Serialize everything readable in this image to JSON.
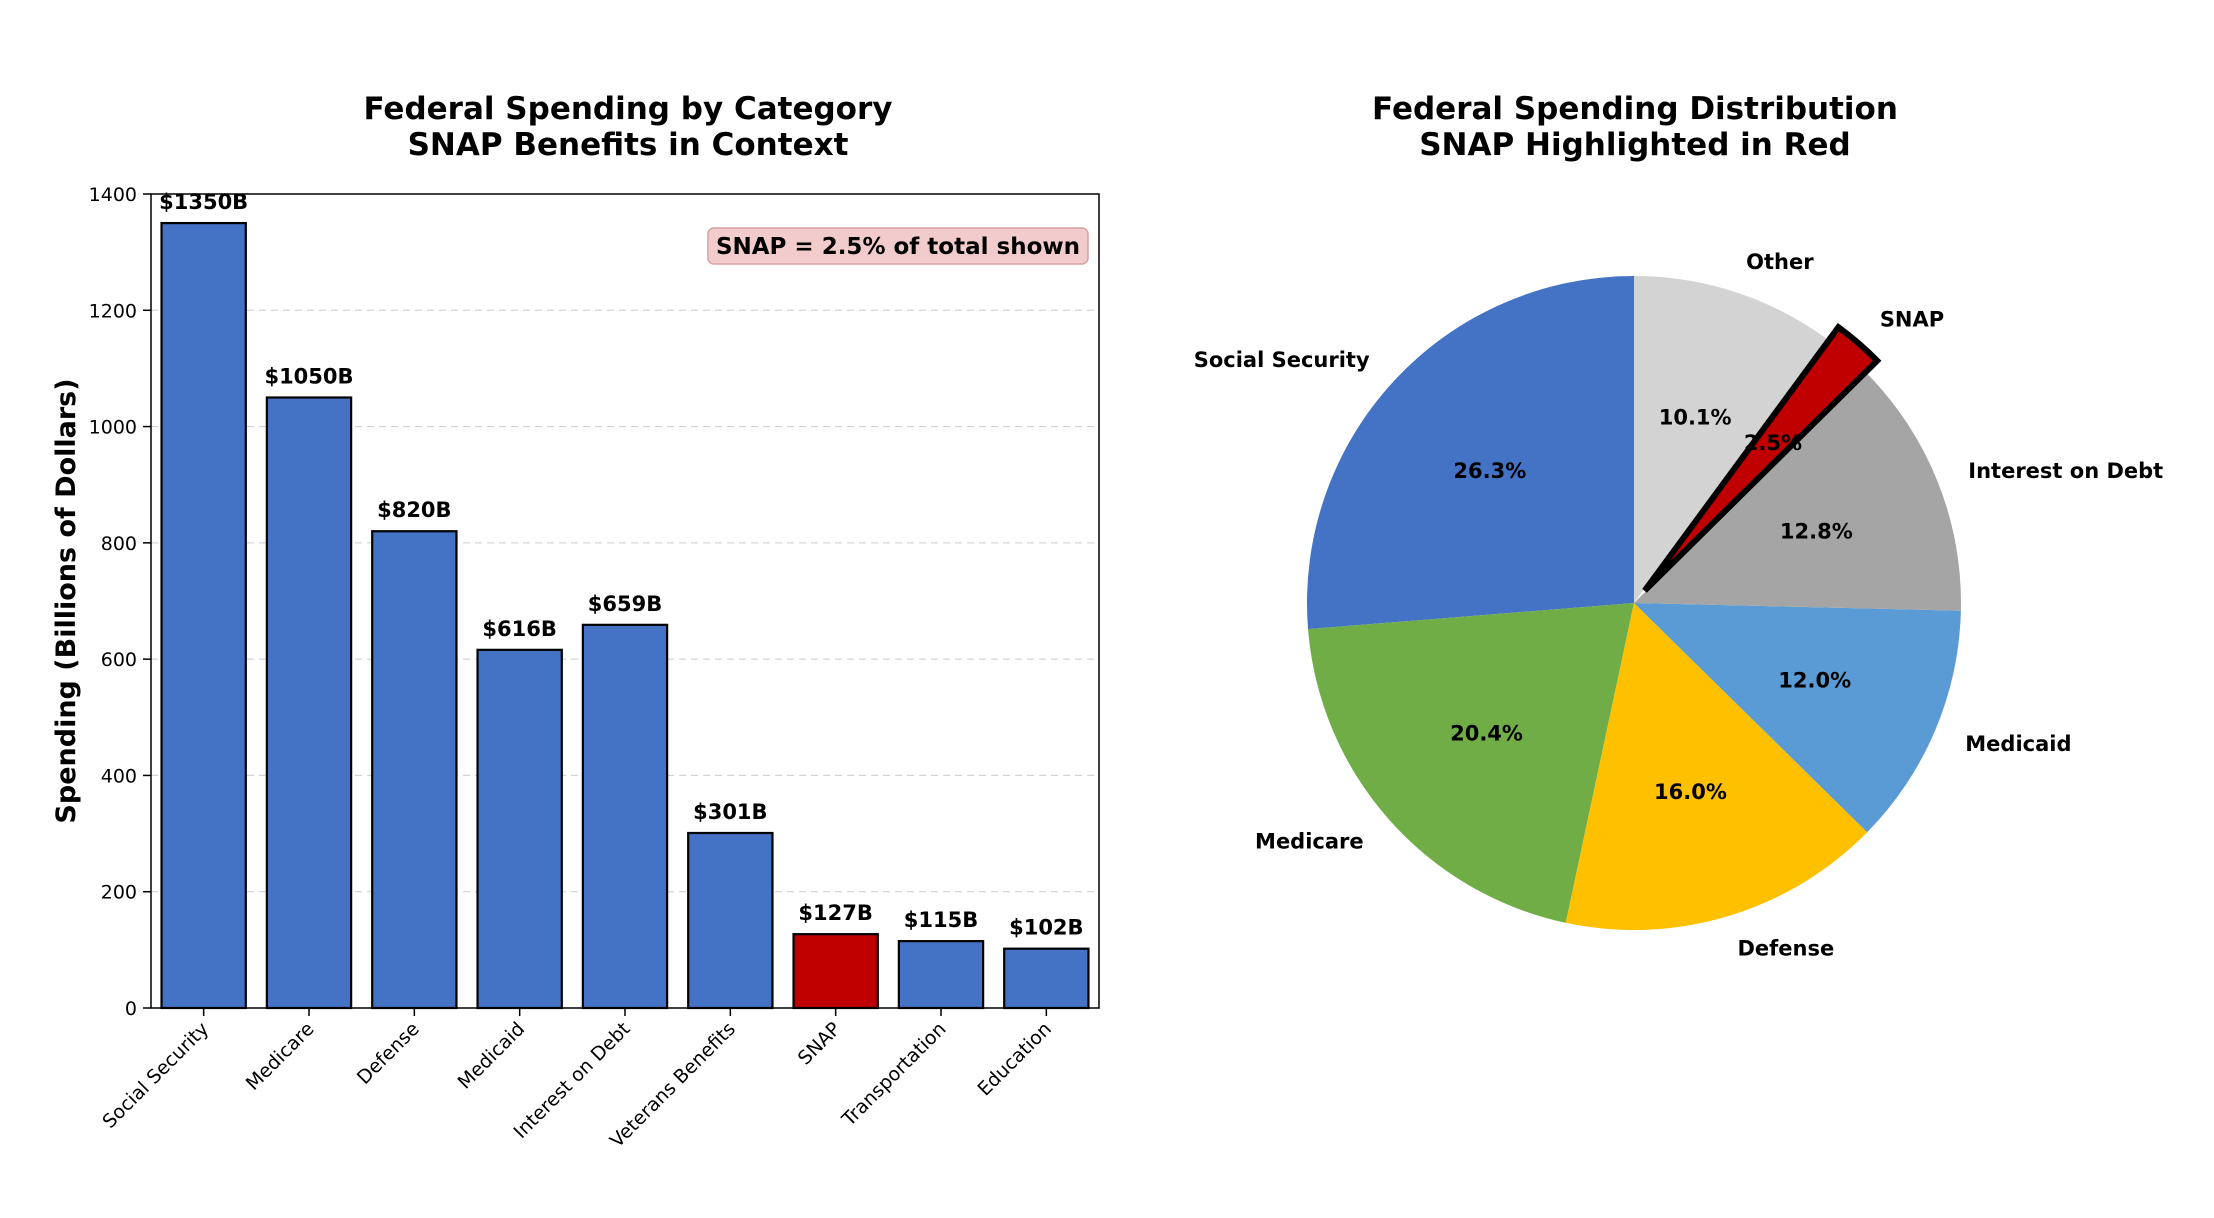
{
  "chart_data": [
    {
      "type": "bar",
      "title_line1": "Federal Spending by Category",
      "title_line2": "SNAP Benefits in Context",
      "ylabel": "Spending (Billions of Dollars)",
      "categories": [
        "Social Security",
        "Medicare",
        "Defense",
        "Medicaid",
        "Interest on Debt",
        "Veterans Benefits",
        "SNAP",
        "Transportation",
        "Education"
      ],
      "values": [
        1350,
        1050,
        820,
        616,
        659,
        301,
        127,
        115,
        102
      ],
      "value_labels": [
        "$1350B",
        "$1050B",
        "$820B",
        "$616B",
        "$659B",
        "$301B",
        "$127B",
        "$115B",
        "$102B"
      ],
      "highlight": "SNAP",
      "colors": {
        "default": "#4472c4",
        "highlight": "#c00000"
      },
      "ylim": [
        0,
        1400
      ],
      "yticks": [
        0,
        200,
        400,
        600,
        800,
        1000,
        1200,
        1400
      ],
      "grid": "y dashed",
      "annotation": "SNAP = 2.5% of total shown",
      "annotation_position": "top-right",
      "annotation_colors": {
        "fill": "#f2cccc",
        "edge": "#d9a0a0"
      }
    },
    {
      "type": "pie",
      "title_line1": "Federal Spending Distribution",
      "title_line2": "SNAP Highlighted in Red",
      "slices": [
        {
          "label": "Social Security",
          "value": 26.3,
          "pct": "26.3%",
          "color": "#4472c4",
          "explode": false
        },
        {
          "label": "Medicare",
          "value": 20.4,
          "pct": "20.4%",
          "color": "#70ad47",
          "explode": false
        },
        {
          "label": "Defense",
          "value": 16.0,
          "pct": "16.0%",
          "color": "#ffc000",
          "explode": false
        },
        {
          "label": "Medicaid",
          "value": 12.0,
          "pct": "12.0%",
          "color": "#5b9bd5",
          "explode": false
        },
        {
          "label": "Interest on Debt",
          "value": 12.8,
          "pct": "12.8%",
          "color": "#a5a5a5",
          "explode": false
        },
        {
          "label": "SNAP",
          "value": 2.5,
          "pct": "2.5%",
          "color": "#c00000",
          "explode": true
        },
        {
          "label": "Other",
          "value": 10.1,
          "pct": "10.1%",
          "color": "#d3d3d3",
          "explode": false
        }
      ],
      "start_angle_deg": 90,
      "direction": "counterclockwise"
    }
  ]
}
